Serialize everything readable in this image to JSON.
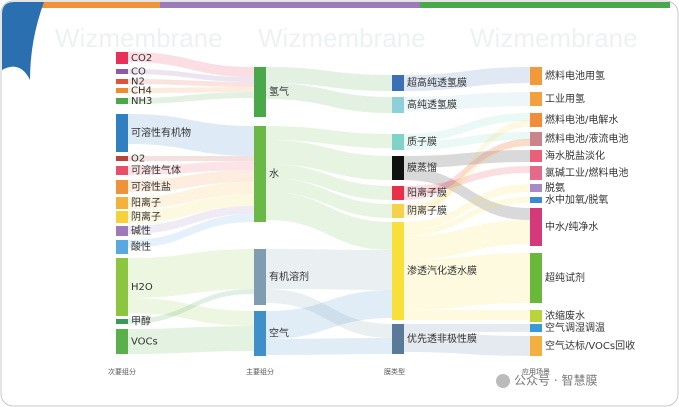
{
  "watermarks": [
    "Wizmembrane",
    "Wizmembrane",
    "Wizmembrane"
  ],
  "columns": [
    {
      "label": "次要组分",
      "nodes": [
        {
          "label": "CO2",
          "color": "#e8305a"
        },
        {
          "label": "CO",
          "color": "#8e5aa8"
        },
        {
          "label": "N2",
          "color": "#e0533a"
        },
        {
          "label": "CH4",
          "color": "#f08a2c"
        },
        {
          "label": "NH3",
          "color": "#4aa84a"
        },
        {
          "label": "可溶性有机物",
          "color": "#2f7fc1"
        },
        {
          "label": "O2",
          "color": "#b5453a"
        },
        {
          "label": "可溶性气体",
          "color": "#e8506a"
        },
        {
          "label": "可溶性盐",
          "color": "#f0923a"
        },
        {
          "label": "阳离子",
          "color": "#f3b33a"
        },
        {
          "label": "阴离子",
          "color": "#f5d23c"
        },
        {
          "label": "碱性",
          "color": "#9c7bb8"
        },
        {
          "label": "酸性",
          "color": "#5aa8e0"
        },
        {
          "label": "H2O",
          "color": "#8cc63e"
        },
        {
          "label": "甲醇",
          "color": "#3a9a5a"
        },
        {
          "label": "VOCs",
          "color": "#5ab04a"
        }
      ]
    },
    {
      "label": "主要组分",
      "nodes": [
        {
          "label": "氢气",
          "color": "#4aa84a"
        },
        {
          "label": "水",
          "color": "#6ab845"
        },
        {
          "label": "有机溶剂",
          "color": "#7f9cb0"
        },
        {
          "label": "空气",
          "color": "#3f8fc8"
        }
      ]
    },
    {
      "label": "膜类型",
      "nodes": [
        {
          "label": "超高纯透氢膜",
          "color": "#3b6fb6"
        },
        {
          "label": "高纯透氢膜",
          "color": "#8fd0d8"
        },
        {
          "label": "质子膜",
          "color": "#7fd3c8"
        },
        {
          "label": "膜蒸馏",
          "color": "#111111"
        },
        {
          "label": "阳离子膜",
          "color": "#e8304a"
        },
        {
          "label": "阴离子膜",
          "color": "#f6d24a"
        },
        {
          "label": "渗透汽化透水膜",
          "color": "#f8df3a"
        },
        {
          "label": "优先透非极性膜",
          "color": "#5a7a9a"
        }
      ]
    },
    {
      "label": "应用场景",
      "nodes": [
        {
          "label": "燃料电池用氢",
          "color": "#f29a3a"
        },
        {
          "label": "工业用氢",
          "color": "#f3a040"
        },
        {
          "label": "燃料电池/电解水",
          "color": "#f08c3a"
        },
        {
          "label": "燃料电池/液流电池",
          "color": "#c9858a"
        },
        {
          "label": "海水脱盐淡化",
          "color": "#e8607a"
        },
        {
          "label": "氯碱工业/燃料电池",
          "color": "#e46a8a"
        },
        {
          "label": "脱氨",
          "color": "#a98ac8"
        },
        {
          "label": "水中加氧/脱氧",
          "color": "#3a8ad0"
        },
        {
          "label": "中水/纯净水",
          "color": "#d43a7a"
        },
        {
          "label": "超纯试剂",
          "color": "#6ab83a"
        },
        {
          "label": "浓缩废水",
          "color": "#b8d43a"
        },
        {
          "label": "空气调湿调温",
          "color": "#3a9ad8"
        },
        {
          "label": "空气达标/VOCs回收",
          "color": "#f3b040"
        }
      ]
    }
  ],
  "footer": "公众号 · 智慧膜"
}
